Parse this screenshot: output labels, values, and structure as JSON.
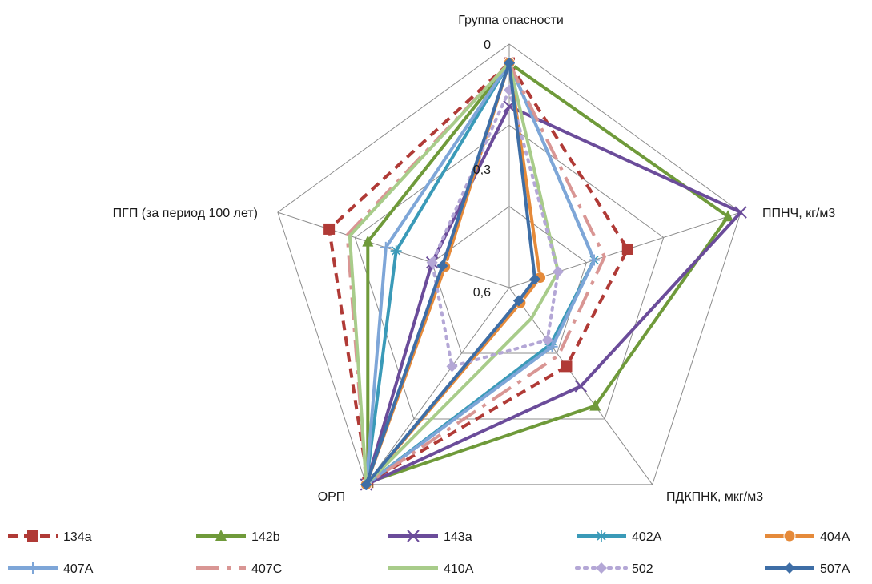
{
  "chart_data": {
    "type": "radar",
    "axes": [
      "Группа опасности",
      "ППНЧ,  кг/м3",
      "ПДКПНК,  мкг/м3",
      "ОРП",
      "ПГП (за период  100 лет)"
    ],
    "r_ticks": [
      "0",
      "0,3",
      "0,6"
    ],
    "r_range": [
      0,
      0.9
    ],
    "axis_direction": "reversed",
    "legend_position": "bottom",
    "series": [
      {
        "name": "134a",
        "color": "#b03a36",
        "dash": "12,8",
        "marker": "square",
        "values": [
          0.07,
          0.44,
          0.54,
          0.01,
          0.2
        ]
      },
      {
        "name": "142b",
        "color": "#6f9a3a",
        "dash": "",
        "marker": "triangle",
        "values": [
          0.07,
          0.05,
          0.36,
          0.01,
          0.35
        ]
      },
      {
        "name": "143a",
        "color": "#6b4c9a",
        "dash": "",
        "marker": "x",
        "values": [
          0.23,
          0.0,
          0.45,
          0.0,
          0.6
        ]
      },
      {
        "name": "402A",
        "color": "#3a9ab8",
        "dash": "",
        "marker": "star",
        "values": [
          0.07,
          0.57,
          0.64,
          0.0,
          0.46
        ]
      },
      {
        "name": "404A",
        "color": "#e58a3a",
        "dash": "",
        "marker": "circle",
        "values": [
          0.07,
          0.78,
          0.83,
          0.0,
          0.65
        ]
      },
      {
        "name": "407A",
        "color": "#7ea6d8",
        "dash": "",
        "marker": "plus",
        "values": [
          0.07,
          0.57,
          0.63,
          0.0,
          0.42
        ]
      },
      {
        "name": "407C",
        "color": "#d99694",
        "dash": "28,10,5,10",
        "marker": "none",
        "values": [
          0.07,
          0.53,
          0.59,
          0.0,
          0.27
        ]
      },
      {
        "name": "410A",
        "color": "#a8cc8a",
        "dash": "",
        "marker": "none",
        "values": [
          0.07,
          0.71,
          0.76,
          0.0,
          0.28
        ]
      },
      {
        "name": "502",
        "color": "#b4a7d6",
        "dash": "3,7",
        "marker": "diamond",
        "values": [
          0.17,
          0.71,
          0.66,
          0.54,
          0.6
        ]
      },
      {
        "name": "507A",
        "color": "#3e6ea6",
        "dash": "",
        "marker": "diamond",
        "values": [
          0.07,
          0.8,
          0.84,
          0.0,
          0.64
        ]
      }
    ]
  }
}
